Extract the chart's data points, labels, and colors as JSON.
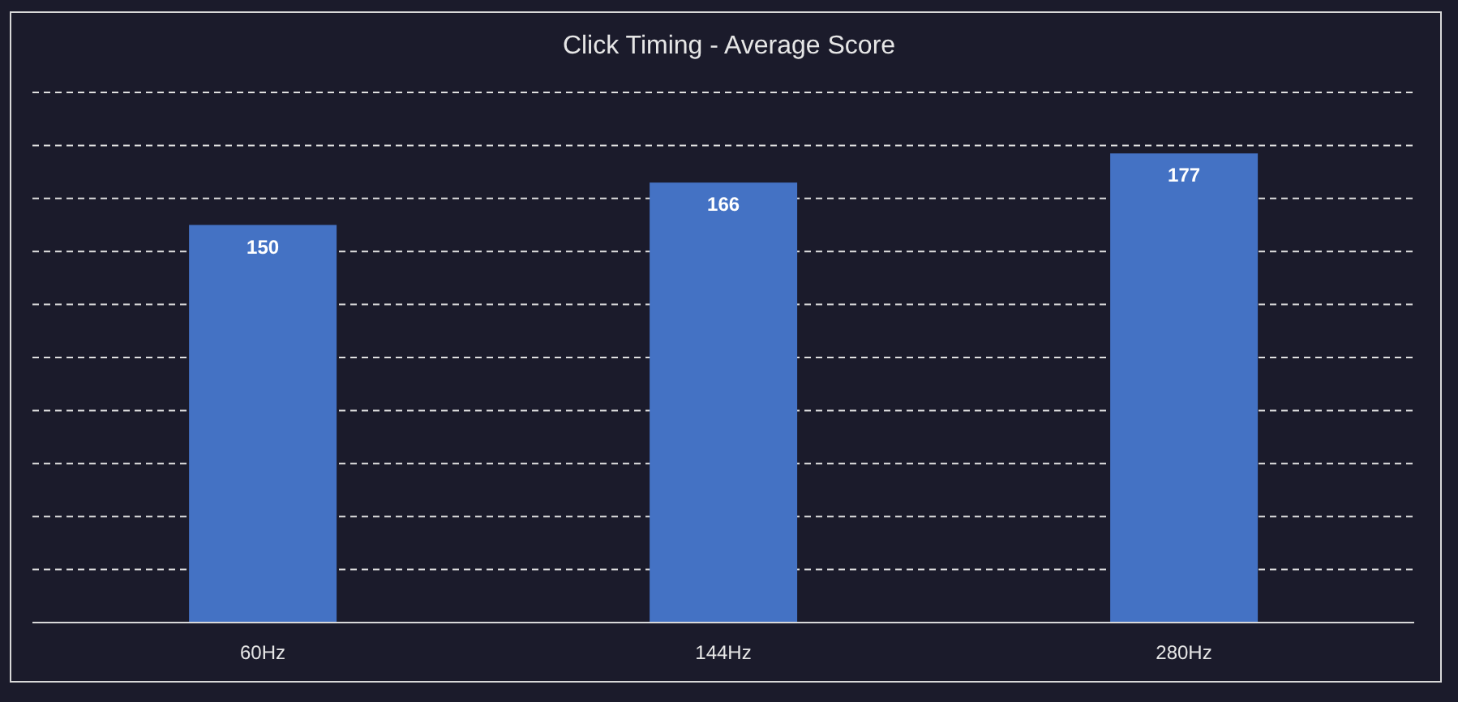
{
  "chart_data": {
    "type": "bar",
    "title": "Click Timing - Average Score",
    "categories": [
      "60Hz",
      "144Hz",
      "280Hz"
    ],
    "values": [
      150,
      166,
      177
    ],
    "color": "#4472c4",
    "ylim": [
      0,
      200
    ],
    "yticks": [
      {
        "value": 0,
        "label": null
      },
      {
        "value": 20,
        "label": null
      },
      {
        "value": 40,
        "label": null
      },
      {
        "value": 60,
        "label": null
      },
      {
        "value": 80,
        "label": null
      },
      {
        "value": 100,
        "label": null
      },
      {
        "value": 120,
        "label": null
      },
      {
        "value": 140,
        "label": null
      },
      {
        "value": 160,
        "label": null
      },
      {
        "value": 180,
        "label": null
      },
      {
        "value": 200,
        "label": null
      }
    ],
    "grid": "y",
    "data_labels": true,
    "tick_labels": "x"
  }
}
